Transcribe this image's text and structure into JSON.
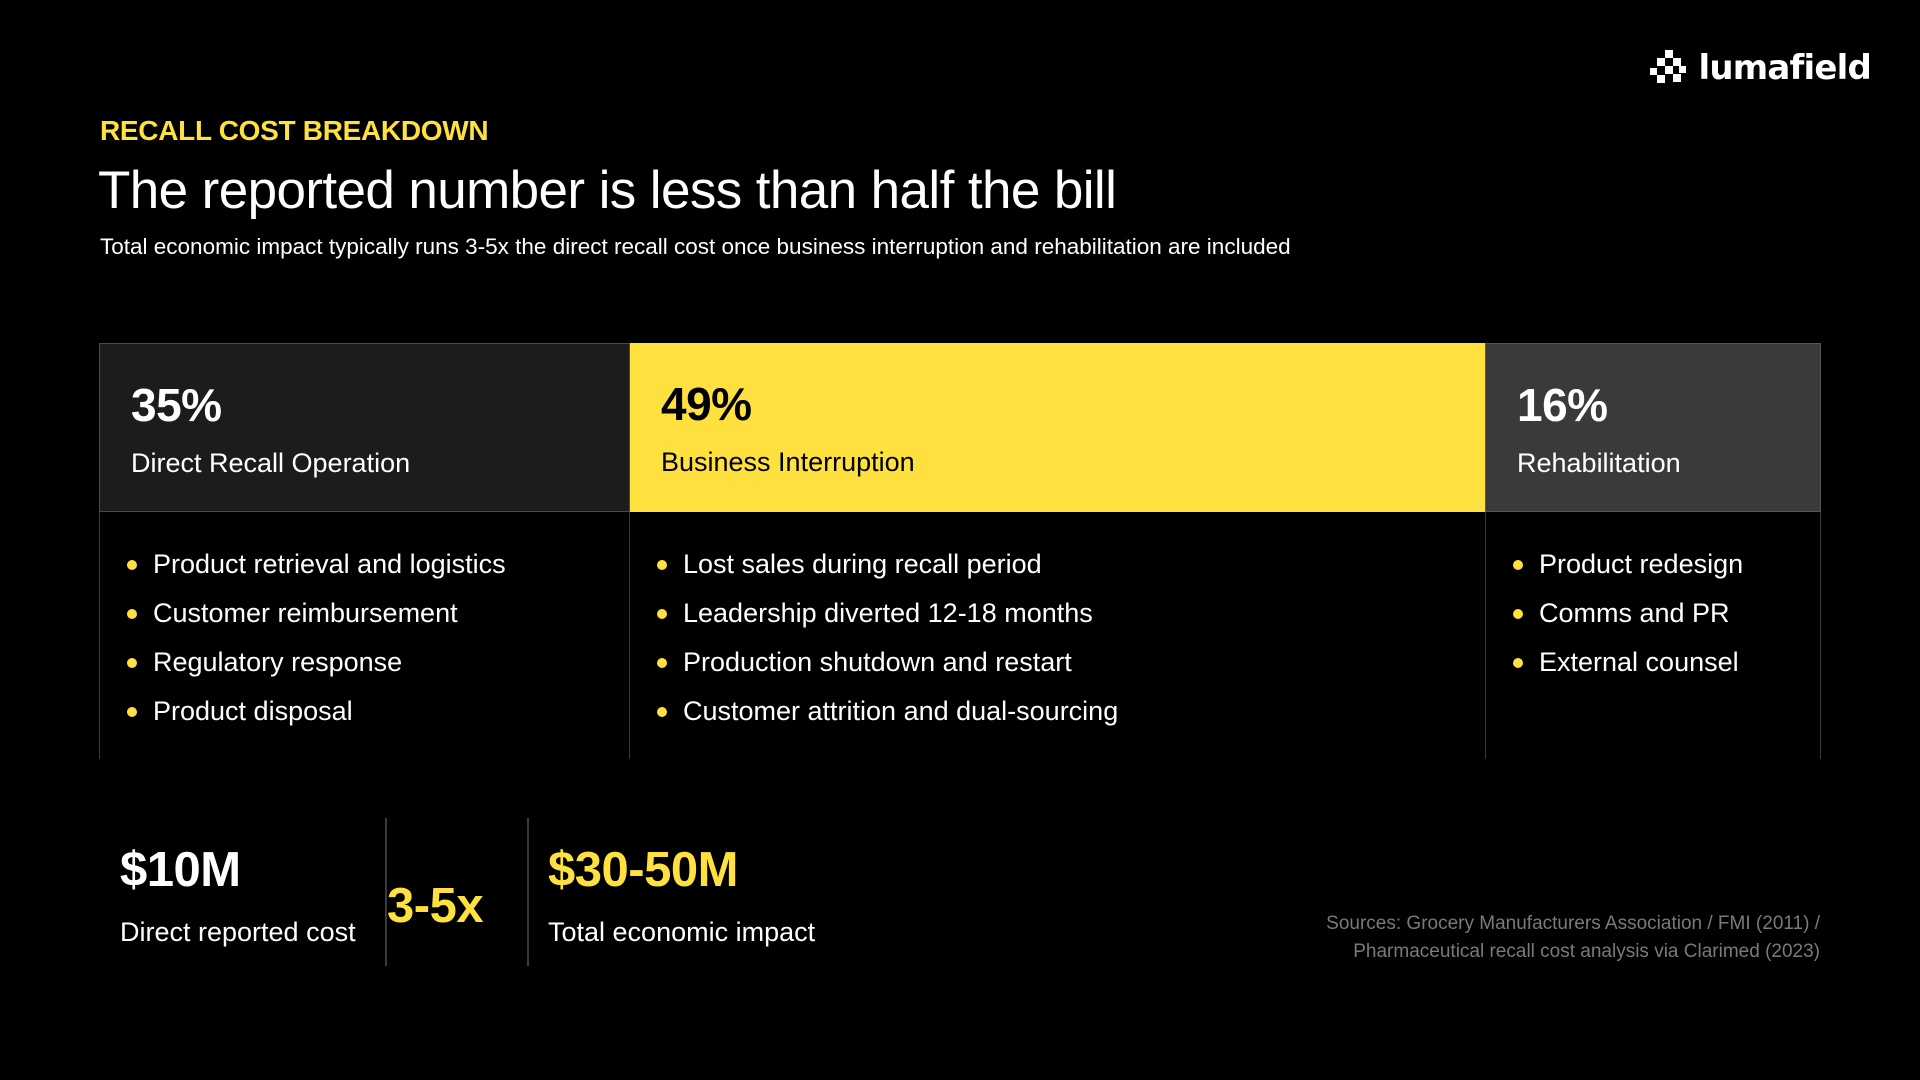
{
  "brand": {
    "name": "lumafield",
    "icon": "lumafield-logo-icon",
    "accent_color": "#FEE13E"
  },
  "header": {
    "eyebrow": "RECALL COST BREAKDOWN",
    "title": "The reported number is less than half the bill",
    "subtitle": "Total economic impact typically runs 3-5x the direct recall cost once business interruption and rehabilitation are included"
  },
  "breakdown": [
    {
      "percent": "35%",
      "label": "Direct Recall Operation",
      "share": 0.35,
      "color": "#1C1C1C",
      "items": [
        "Product retrieval and logistics",
        "Customer reimbursement",
        "Regulatory response",
        "Product disposal"
      ]
    },
    {
      "percent": "49%",
      "label": "Business Interruption",
      "share": 0.49,
      "color": "#FEE13E",
      "items": [
        "Lost sales during recall period",
        "Leadership diverted 12-18 months",
        "Production shutdown and restart",
        "Customer attrition and dual-sourcing"
      ]
    },
    {
      "percent": "16%",
      "label": "Rehabilitation",
      "share": 0.16,
      "color": "#3A3A3A",
      "items": [
        "Product redesign",
        "Comms and PR",
        "External counsel"
      ]
    }
  ],
  "stats": {
    "direct": {
      "value": "$10M",
      "label": "Direct reported cost"
    },
    "multiplier": {
      "value": "3-5x"
    },
    "total": {
      "value": "$30-50M",
      "label": "Total economic impact"
    }
  },
  "sources": {
    "line1": "Sources: Grocery Manufacturers Association / FMI (2011) /",
    "line2": "Pharmaceutical recall cost analysis via Clarimed (2023)"
  }
}
